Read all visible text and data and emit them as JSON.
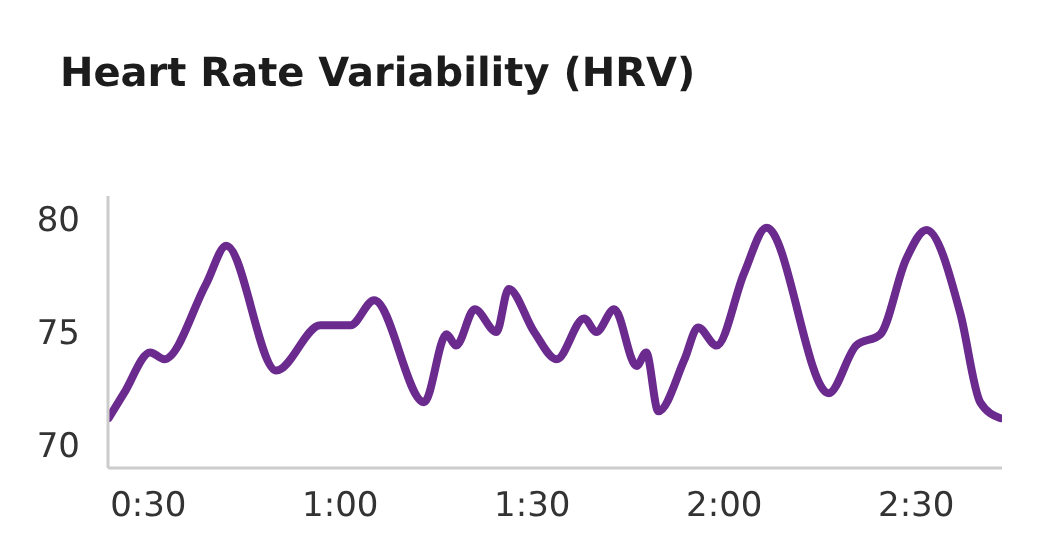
{
  "chart_data": {
    "type": "line",
    "title": "Heart Rate Variability (HRV)",
    "x": [
      23.8,
      26.2,
      30.3,
      32.5,
      39,
      42.2,
      50,
      56.9,
      61.6,
      65.3,
      73.1,
      76.6,
      78.1,
      81,
      84.4,
      86.3,
      90.3,
      93.8,
      98.1,
      100,
      102.8,
      106.3,
      107.8,
      109.7,
      113.8,
      115.9,
      118.8,
      123.1,
      126.6,
      136.3,
      140.6,
      144.4,
      148.4,
      151.6,
      156.9,
      160,
      163.1
    ],
    "series": [
      {
        "color": "#6b2a8e",
        "values": [
          71.2,
          72.3,
          74.1,
          73.8,
          77.1,
          78.8,
          73.3,
          75.3,
          75.3,
          76.4,
          71.9,
          74.9,
          74.4,
          76.0,
          75.0,
          76.9,
          75.0,
          73.8,
          75.6,
          75.0,
          76.0,
          73.5,
          74.1,
          71.5,
          73.8,
          75.2,
          74.4,
          77.6,
          79.6,
          72.3,
          74.4,
          74.9,
          78.2,
          79.5,
          75.8,
          71.9,
          71.2
        ]
      }
    ],
    "xlim": [
      23.7,
      163.4
    ],
    "ylim": [
      69,
      81
    ],
    "xticks": [
      {
        "value": 30,
        "label": "0:30"
      },
      {
        "value": 60,
        "label": "1:00"
      },
      {
        "value": 90,
        "label": "1:30"
      },
      {
        "value": 120,
        "label": "2:00"
      },
      {
        "value": 150,
        "label": "2:30"
      }
    ],
    "yticks": [
      70,
      75,
      80
    ],
    "grid": false,
    "legend": false,
    "marker": "none",
    "line_style": "solid"
  }
}
